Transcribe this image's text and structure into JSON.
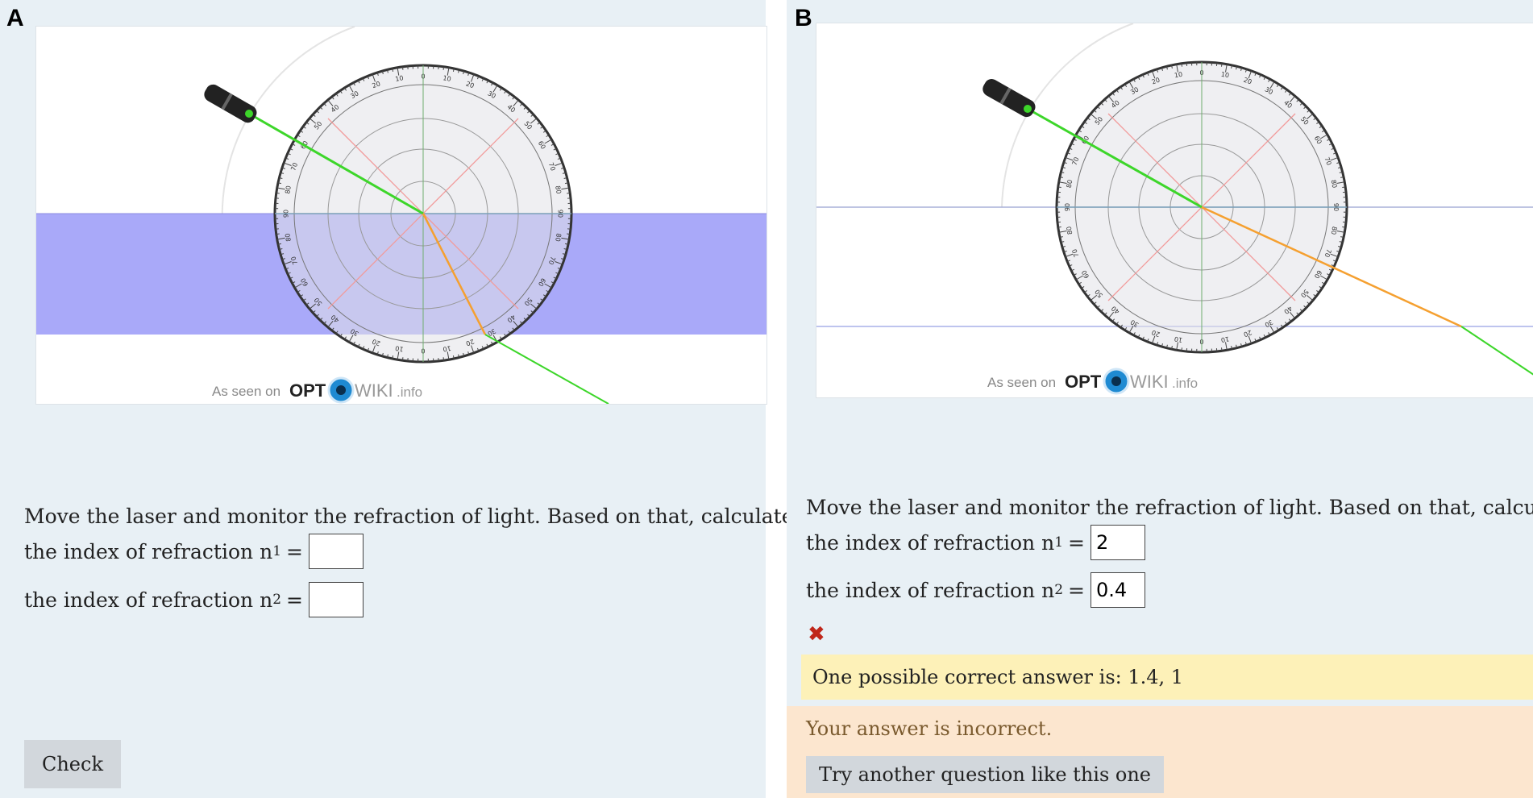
{
  "panels": [
    {
      "label": "A",
      "watermark": {
        "prefix": "As seen on",
        "brand1": "OPT",
        "brand2": "WIKI",
        "suffix": ".info"
      },
      "question": {
        "text": "Move the laser and monitor the refraction of light. Based on that, calculate:"
      },
      "field1": {
        "label_prefix": "the index of refraction n",
        "sub": "1",
        "equals": "=",
        "value": ""
      },
      "field2": {
        "label_prefix": "the index of refraction n",
        "sub": "2",
        "equals": "=",
        "value": ""
      },
      "check_button": "Check"
    },
    {
      "label": "B",
      "watermark": {
        "prefix": "As seen on",
        "brand1": "OPT",
        "brand2": "WIKI",
        "suffix": ".info"
      },
      "question": {
        "text": "Move the laser and monitor the refraction of light. Based on that, calculate:"
      },
      "field1": {
        "label_prefix": "the index of refraction n",
        "sub": "1",
        "equals": "=",
        "value": "2"
      },
      "field2": {
        "label_prefix": "the index of refraction n",
        "sub": "2",
        "equals": "=",
        "value": "0.4"
      },
      "incorrect_mark": "✖",
      "correct_answer": "One possible correct answer is: 1.4, 1",
      "feedback": "Your answer is incorrect.",
      "try_again_button": "Try another question like this one"
    }
  ],
  "protractor_ticks": [
    "0",
    "10",
    "20",
    "30",
    "40",
    "50",
    "60",
    "70",
    "80",
    "90",
    "80",
    "70",
    "60",
    "50",
    "40",
    "30",
    "20",
    "10"
  ],
  "colors": {
    "glass": "#a9a9f9",
    "laser": "#3dd62a",
    "refracted": "#f5a030",
    "normal": "#6fae6f",
    "diag": "#f29a9a"
  }
}
